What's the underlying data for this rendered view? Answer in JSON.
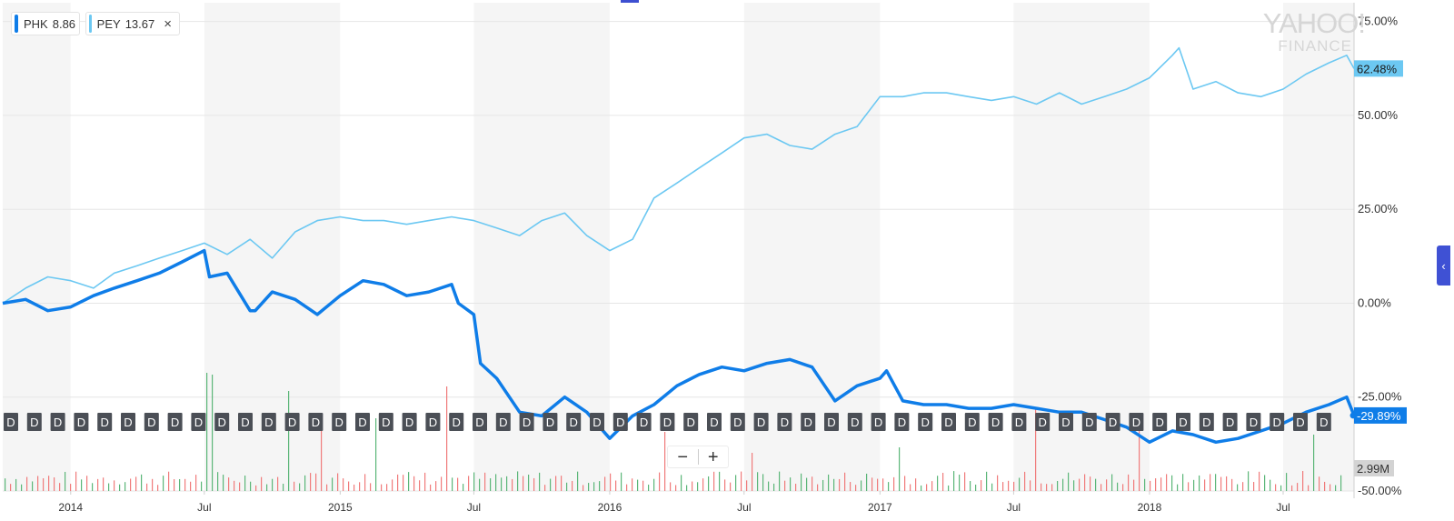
{
  "legend": [
    {
      "symbol": "PHK",
      "value": "8.86",
      "color": "#0f7de8",
      "closable": false
    },
    {
      "symbol": "PEY",
      "value": "13.67",
      "color": "#6cc8f2",
      "closable": true,
      "close_glyph": "×"
    }
  ],
  "logo": {
    "line1": "YAHOO!",
    "line2": "FINANCE"
  },
  "zoom": {
    "minus": "−",
    "plus": "+"
  },
  "collapse_glyph": "‹",
  "colors": {
    "phk": "#0f7de8",
    "pey": "#6cc8f2",
    "vol_up": "#5bb678",
    "vol_down": "#f07b7b",
    "stripe": "#f5f5f5",
    "marker": "#4b4f56",
    "accent": "#3f51d4"
  },
  "chart_data": {
    "type": "line",
    "title": "",
    "y_axis": {
      "ticks": [
        "75.00%",
        "50.00%",
        "25.00%",
        "0.00%",
        "-25.00%",
        "-50.00%"
      ],
      "range": [
        -50,
        80
      ],
      "unit": "%"
    },
    "x_axis": {
      "ticks": [
        {
          "label": "2014",
          "date": "2014-01-01"
        },
        {
          "label": "Jul",
          "date": "2014-07-01"
        },
        {
          "label": "2015",
          "date": "2015-01-01"
        },
        {
          "label": "Jul",
          "date": "2015-07-01"
        },
        {
          "label": "2016",
          "date": "2016-01-01"
        },
        {
          "label": "Jul",
          "date": "2016-07-01"
        },
        {
          "label": "2017",
          "date": "2017-01-01"
        },
        {
          "label": "Jul",
          "date": "2017-07-01"
        },
        {
          "label": "2018",
          "date": "2018-01-01"
        },
        {
          "label": "Jul",
          "date": "2018-07-01"
        }
      ],
      "range": [
        "2013-10-01",
        "2018-10-05"
      ]
    },
    "series": [
      {
        "name": "PHK",
        "last_label": "-29.89%",
        "x": [
          "2013-10-01",
          "2013-11-01",
          "2013-12-01",
          "2014-01-01",
          "2014-02-01",
          "2014-03-01",
          "2014-04-01",
          "2014-05-01",
          "2014-06-01",
          "2014-07-01",
          "2014-07-08",
          "2014-08-01",
          "2014-09-01",
          "2014-09-08",
          "2014-10-01",
          "2014-11-01",
          "2014-12-01",
          "2015-01-01",
          "2015-02-01",
          "2015-03-01",
          "2015-04-01",
          "2015-05-01",
          "2015-06-01",
          "2015-06-10",
          "2015-07-01",
          "2015-07-10",
          "2015-08-01",
          "2015-09-01",
          "2015-10-01",
          "2015-11-01",
          "2015-12-01",
          "2016-01-01",
          "2016-02-01",
          "2016-03-01",
          "2016-04-01",
          "2016-05-01",
          "2016-06-01",
          "2016-07-01",
          "2016-08-01",
          "2016-09-01",
          "2016-10-01",
          "2016-11-01",
          "2016-12-01",
          "2017-01-01",
          "2017-01-10",
          "2017-02-01",
          "2017-03-01",
          "2017-04-01",
          "2017-05-01",
          "2017-06-01",
          "2017-07-01",
          "2017-08-01",
          "2017-09-01",
          "2017-10-01",
          "2017-11-01",
          "2017-12-01",
          "2018-01-01",
          "2018-02-01",
          "2018-03-01",
          "2018-04-01",
          "2018-05-01",
          "2018-06-01",
          "2018-07-01",
          "2018-08-01",
          "2018-09-01",
          "2018-09-25",
          "2018-10-05"
        ],
        "y": [
          0,
          1,
          -2,
          -1,
          2,
          4,
          6,
          8,
          11,
          14,
          7,
          8,
          -2,
          -2,
          3,
          1,
          -3,
          2,
          6,
          5,
          2,
          3,
          5,
          0,
          -3,
          -16,
          -20,
          -29,
          -30,
          -25,
          -29,
          -36,
          -30,
          -27,
          -22,
          -19,
          -17,
          -18,
          -16,
          -15,
          -17,
          -26,
          -22,
          -20,
          -18,
          -26,
          -27,
          -27,
          -28,
          -28,
          -27,
          -28,
          -29,
          -29,
          -31,
          -33,
          -37,
          -34,
          -35,
          -37,
          -36,
          -34,
          -32,
          -29,
          -27,
          -25,
          -29.89
        ]
      },
      {
        "name": "PEY",
        "last_label": "62.48%",
        "x": [
          "2013-10-01",
          "2013-11-01",
          "2013-12-01",
          "2014-01-01",
          "2014-02-01",
          "2014-03-01",
          "2014-04-01",
          "2014-05-01",
          "2014-06-01",
          "2014-07-01",
          "2014-08-01",
          "2014-09-01",
          "2014-10-01",
          "2014-11-01",
          "2014-12-01",
          "2015-01-01",
          "2015-02-01",
          "2015-03-01",
          "2015-04-01",
          "2015-05-01",
          "2015-06-01",
          "2015-07-01",
          "2015-08-01",
          "2015-09-01",
          "2015-10-01",
          "2015-11-01",
          "2015-12-01",
          "2016-01-01",
          "2016-02-01",
          "2016-03-01",
          "2016-04-01",
          "2016-05-01",
          "2016-06-01",
          "2016-07-01",
          "2016-08-01",
          "2016-09-01",
          "2016-10-01",
          "2016-11-01",
          "2016-12-01",
          "2017-01-01",
          "2017-02-01",
          "2017-03-01",
          "2017-04-01",
          "2017-05-01",
          "2017-06-01",
          "2017-07-01",
          "2017-08-01",
          "2017-09-01",
          "2017-10-01",
          "2017-11-01",
          "2017-12-01",
          "2018-01-01",
          "2018-02-01",
          "2018-02-10",
          "2018-03-01",
          "2018-04-01",
          "2018-05-01",
          "2018-06-01",
          "2018-07-01",
          "2018-08-01",
          "2018-09-01",
          "2018-09-25",
          "2018-10-05"
        ],
        "y": [
          0,
          4,
          7,
          6,
          4,
          8,
          10,
          12,
          14,
          16,
          13,
          17,
          12,
          19,
          22,
          23,
          22,
          22,
          21,
          22,
          23,
          22,
          20,
          18,
          22,
          24,
          18,
          14,
          17,
          28,
          32,
          36,
          40,
          44,
          45,
          42,
          41,
          45,
          47,
          55,
          55,
          56,
          56,
          55,
          54,
          55,
          53,
          56,
          53,
          55,
          57,
          60,
          66,
          68,
          57,
          59,
          56,
          55,
          57,
          61,
          64,
          66,
          62.48
        ]
      }
    ],
    "volume": {
      "label": "2.99M"
    },
    "event_markers": {
      "label": "D",
      "count": 57
    }
  }
}
